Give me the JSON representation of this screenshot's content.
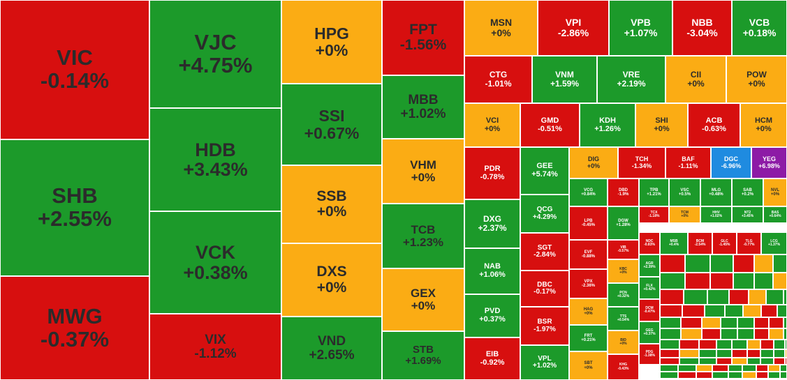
{
  "colors": {
    "red": "#d70f0f",
    "green": "#1c9a2a",
    "yellow": "#fbac14",
    "blue": "#1f8be0",
    "purple": "#8d1ba6"
  },
  "chart_data": {
    "type": "heatmap",
    "title": "",
    "tiles": [
      {
        "symbol": "VIC",
        "change": "-0.14%",
        "value": -0.14
      },
      {
        "symbol": "SHB",
        "change": "+2.55%",
        "value": 2.55
      },
      {
        "symbol": "MWG",
        "change": "-0.37%",
        "value": -0.37
      },
      {
        "symbol": "VJC",
        "change": "+4.75%",
        "value": 4.75
      },
      {
        "symbol": "HDB",
        "change": "+3.43%",
        "value": 3.43
      },
      {
        "symbol": "VCK",
        "change": "+0.38%",
        "value": 0.38
      },
      {
        "symbol": "VIX",
        "change": "-1.12%",
        "value": -1.12
      },
      {
        "symbol": "HPG",
        "change": "+0%",
        "value": 0
      },
      {
        "symbol": "SSI",
        "change": "+0.67%",
        "value": 0.67
      },
      {
        "symbol": "SSB",
        "change": "+0%",
        "value": 0
      },
      {
        "symbol": "DXS",
        "change": "+0%",
        "value": 0
      },
      {
        "symbol": "VND",
        "change": "+2.65%",
        "value": 2.65
      },
      {
        "symbol": "FPT",
        "change": "-1.56%",
        "value": -1.56
      },
      {
        "symbol": "MBB",
        "change": "+1.02%",
        "value": 1.02
      },
      {
        "symbol": "VHM",
        "change": "+0%",
        "value": 0
      },
      {
        "symbol": "TCB",
        "change": "+1.23%",
        "value": 1.23
      },
      {
        "symbol": "GEX",
        "change": "+0%",
        "value": 0
      },
      {
        "symbol": "STB",
        "change": "+1.69%",
        "value": 1.69
      },
      {
        "symbol": "MSN",
        "change": "+0%",
        "value": 0
      },
      {
        "symbol": "VPI",
        "change": "-2.86%",
        "value": -2.86
      },
      {
        "symbol": "VPB",
        "change": "+1.07%",
        "value": 1.07
      },
      {
        "symbol": "NBB",
        "change": "-3.04%",
        "value": -3.04
      },
      {
        "symbol": "VCB",
        "change": "+0.18%",
        "value": 0.18
      },
      {
        "symbol": "CTG",
        "change": "-1.01%",
        "value": -1.01
      },
      {
        "symbol": "VNM",
        "change": "+1.59%",
        "value": 1.59
      },
      {
        "symbol": "VRE",
        "change": "+2.19%",
        "value": 2.19
      },
      {
        "symbol": "CII",
        "change": "+0%",
        "value": 0
      },
      {
        "symbol": "POW",
        "change": "+0%",
        "value": 0
      },
      {
        "symbol": "VCI",
        "change": "+0%",
        "value": 0
      },
      {
        "symbol": "GMD",
        "change": "-0.51%",
        "value": -0.51
      },
      {
        "symbol": "KDH",
        "change": "+1.26%",
        "value": 1.26
      },
      {
        "symbol": "SHI",
        "change": "+0%",
        "value": 0
      },
      {
        "symbol": "ACB",
        "change": "-0.63%",
        "value": -0.63
      },
      {
        "symbol": "HCM",
        "change": "+0%",
        "value": 0
      },
      {
        "symbol": "PDR",
        "change": "-0.78%",
        "value": -0.78
      },
      {
        "symbol": "DXG",
        "change": "+2.37%",
        "value": 2.37
      },
      {
        "symbol": "NAB",
        "change": "+1.06%",
        "value": 1.06
      },
      {
        "symbol": "PVD",
        "change": "+0.37%",
        "value": 0.37
      },
      {
        "symbol": "EIB",
        "change": "-0.92%",
        "value": -0.92
      },
      {
        "symbol": "GEE",
        "change": "+5.74%",
        "value": 5.74
      },
      {
        "symbol": "QCG",
        "change": "+4.29%",
        "value": 4.29
      },
      {
        "symbol": "SGT",
        "change": "-2.84%",
        "value": -2.84
      },
      {
        "symbol": "DBC",
        "change": "-0.17%",
        "value": -0.17
      },
      {
        "symbol": "BSR",
        "change": "-1.97%",
        "value": -1.97
      },
      {
        "symbol": "VPL",
        "change": "+1.02%",
        "value": 1.02
      },
      {
        "symbol": "DIG",
        "change": "+0%",
        "value": 0
      },
      {
        "symbol": "TCH",
        "change": "-1.34%",
        "value": -1.34
      },
      {
        "symbol": "BAF",
        "change": "-1.11%",
        "value": -1.11
      },
      {
        "symbol": "DGC",
        "change": "-6.96%",
        "value": -6.96
      },
      {
        "symbol": "YEG",
        "change": "+6.98%",
        "value": 6.98
      },
      {
        "symbol": "VCG",
        "change": "+0.84%",
        "value": 0.84
      },
      {
        "symbol": "DBD",
        "change": "-1.9%",
        "value": -1.9
      },
      {
        "symbol": "TPB",
        "change": "+1.21%",
        "value": 1.21
      },
      {
        "symbol": "VSC",
        "change": "+0.5%",
        "value": 0.5
      },
      {
        "symbol": "MLG",
        "change": "+0.48%",
        "value": 0.48
      },
      {
        "symbol": "SAB",
        "change": "+0.2%",
        "value": 0.2
      },
      {
        "symbol": "NVL",
        "change": "+0%",
        "value": 0
      },
      {
        "symbol": "LPB",
        "change": "-0.45%",
        "value": -0.45
      },
      {
        "symbol": "DGW",
        "change": "+1.28%",
        "value": 1.28
      },
      {
        "symbol": "TCX",
        "change": "-1.18%",
        "value": -1.18
      },
      {
        "symbol": "TCM",
        "change": "+0%",
        "value": 0
      },
      {
        "symbol": "HHV",
        "change": "+1.02%",
        "value": 1.02
      },
      {
        "symbol": "NT2",
        "change": "+3.45%",
        "value": 3.45
      },
      {
        "symbol": "BAS",
        "change": "+0.64%",
        "value": 0.64
      },
      {
        "symbol": "EVF",
        "change": "-0.88%",
        "value": -0.88
      },
      {
        "symbol": "VIB",
        "change": "-0.57%",
        "value": -0.57
      },
      {
        "symbol": "NDC",
        "change": "-0.83%",
        "value": -0.83
      },
      {
        "symbol": "MSB",
        "change": "+0.4%",
        "value": 0.4
      },
      {
        "symbol": "BCM",
        "change": "-2.54%",
        "value": -2.54
      },
      {
        "symbol": "GLC",
        "change": "-1.45%",
        "value": -1.45
      },
      {
        "symbol": "TLG",
        "change": "-0.77%",
        "value": -0.77
      },
      {
        "symbol": "LCG",
        "change": "+1.37%",
        "value": 1.37
      },
      {
        "symbol": "VPX",
        "change": "-2.36%",
        "value": -2.36
      },
      {
        "symbol": "KBC",
        "change": "+0%",
        "value": 0
      },
      {
        "symbol": "AGR",
        "change": "+2.39%",
        "value": 2.39
      },
      {
        "symbol": "HAG",
        "change": "+0%",
        "value": 0
      },
      {
        "symbol": "PCN",
        "change": "+0.32%",
        "value": 0.32
      },
      {
        "symbol": "FLX",
        "change": "+0.42%",
        "value": 0.42
      },
      {
        "symbol": "FRT",
        "change": "+0.21%",
        "value": 0.21
      },
      {
        "symbol": "TTS",
        "change": "+0.54%",
        "value": 0.54
      },
      {
        "symbol": "DCM",
        "change": "-0.47%",
        "value": -0.47
      },
      {
        "symbol": "SBT",
        "change": "+0%",
        "value": 0
      },
      {
        "symbol": "BID",
        "change": "+0%",
        "value": 0
      },
      {
        "symbol": "GEG",
        "change": "+0.37%",
        "value": 0.37
      },
      {
        "symbol": "KHG",
        "change": "-0.43%",
        "value": -0.43
      },
      {
        "symbol": "PDG",
        "change": "-1.38%",
        "value": -1.38
      }
    ]
  }
}
